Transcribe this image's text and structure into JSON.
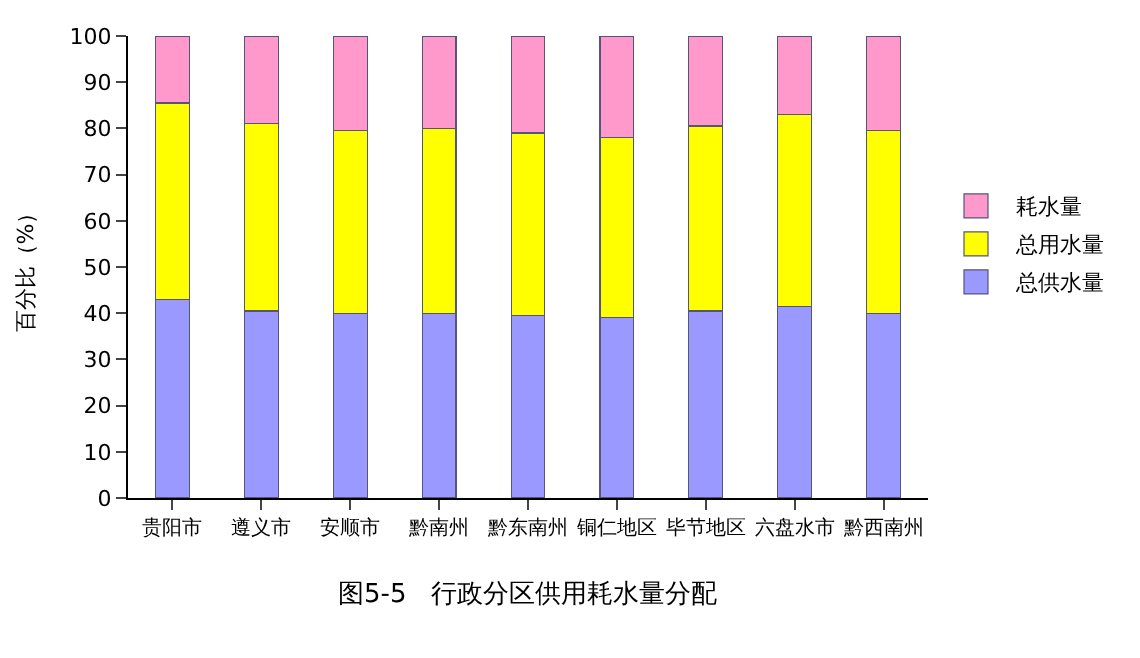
{
  "chart_data": {
    "type": "bar",
    "stacked": true,
    "ylabel": "百分比（%）",
    "categories": [
      "贵阳市",
      "遵义市",
      "安顺市",
      "黔南州",
      "黔东南州",
      "铜仁地区",
      "毕节地区",
      "六盘水市",
      "黔西南州"
    ],
    "series": [
      {
        "name": "总供水量",
        "color": "#9999ff",
        "values": [
          43,
          40.5,
          40,
          40,
          39.5,
          39,
          40.5,
          41.5,
          40
        ]
      },
      {
        "name": "总用水量",
        "color": "#ffff00",
        "values": [
          42.5,
          40.5,
          39.5,
          40,
          39.5,
          39,
          40,
          41.5,
          39.5
        ]
      },
      {
        "name": "耗水量",
        "color": "#ff99cc",
        "values": [
          14.5,
          19,
          20.5,
          20,
          21,
          22,
          19.5,
          17,
          20.5
        ]
      }
    ],
    "ylim": [
      0,
      100
    ],
    "yticks": [
      0,
      10,
      20,
      30,
      40,
      50,
      60,
      70,
      80,
      90,
      100
    ],
    "legend": "right",
    "annotations": [
      "图5-5   行政分区供用耗水量分配"
    ]
  }
}
